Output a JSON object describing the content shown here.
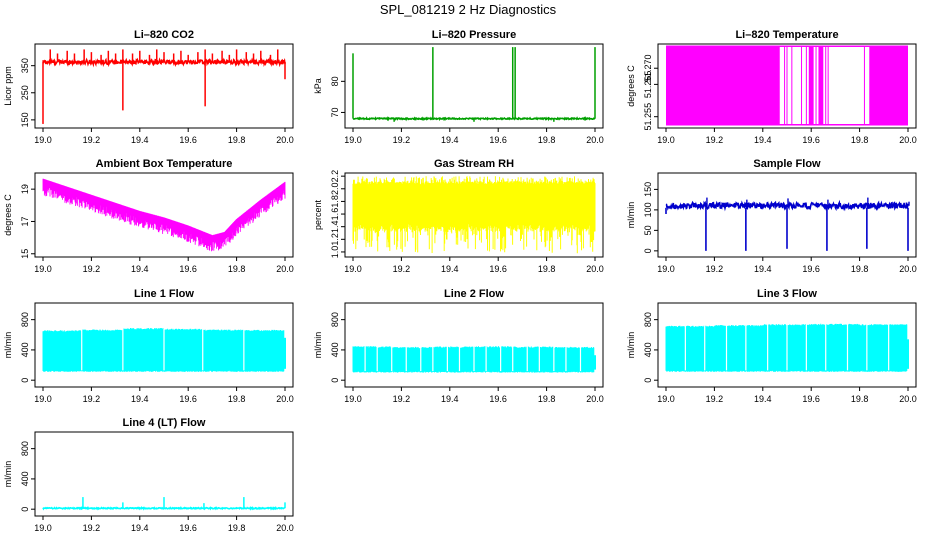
{
  "figure": {
    "title": "SPL_081219  2 Hz Diagnostics"
  },
  "x_ticks": [
    "19.0",
    "19.2",
    "19.4",
    "19.6",
    "19.8",
    "20.0"
  ],
  "chart_data": [
    {
      "type": "line",
      "title": "Li–820 CO2",
      "ylabel": "Licor ppm",
      "x": [
        19.0,
        20.0
      ],
      "ylim": [
        120,
        430
      ],
      "yticks": [
        150,
        250,
        350
      ],
      "ytick_labels": [
        "150",
        "250",
        "350"
      ],
      "color": "#ff0000",
      "pattern": "base_spikes",
      "series": [
        {
          "name": "CO2",
          "base": [
            355,
            372
          ],
          "spikes": [
            [
              19.0,
              135
            ],
            [
              19.03,
              410
            ],
            [
              19.06,
              395
            ],
            [
              19.1,
              405
            ],
            [
              19.13,
              395
            ],
            [
              19.17,
              410
            ],
            [
              19.2,
              400
            ],
            [
              19.24,
              390
            ],
            [
              19.27,
              405
            ],
            [
              19.3,
              395
            ],
            [
              19.33,
              410
            ],
            [
              19.33,
              185
            ],
            [
              19.37,
              395
            ],
            [
              19.4,
              405
            ],
            [
              19.44,
              390
            ],
            [
              19.47,
              410
            ],
            [
              19.5,
              400
            ],
            [
              19.54,
              395
            ],
            [
              19.57,
              405
            ],
            [
              19.6,
              390
            ],
            [
              19.64,
              400
            ],
            [
              19.67,
              410
            ],
            [
              19.67,
              200
            ],
            [
              19.7,
              395
            ],
            [
              19.74,
              405
            ],
            [
              19.77,
              390
            ],
            [
              19.8,
              410
            ],
            [
              19.84,
              400
            ],
            [
              19.87,
              395
            ],
            [
              19.9,
              405
            ],
            [
              19.94,
              390
            ],
            [
              19.97,
              410
            ],
            [
              20.0,
              300
            ]
          ]
        }
      ]
    },
    {
      "type": "line",
      "title": "Li–820 Pressure",
      "ylabel": "kPa",
      "x": [
        19.0,
        20.0
      ],
      "ylim": [
        65,
        92
      ],
      "yticks": [
        70,
        80
      ],
      "ytick_labels": [
        "70",
        "80"
      ],
      "color": "#00a000",
      "pattern": "base_spikes",
      "series": [
        {
          "name": "Pressure",
          "base": [
            67.8,
            68.2
          ],
          "spikes": [
            [
              19.0,
              89
            ],
            [
              19.17,
              67
            ],
            [
              19.33,
              91
            ],
            [
              19.5,
              67
            ],
            [
              19.66,
              91
            ],
            [
              19.67,
              91
            ],
            [
              19.83,
              67
            ],
            [
              20.0,
              91
            ]
          ]
        }
      ]
    },
    {
      "type": "line",
      "title": "Li–820 Temperature",
      "ylabel": "degrees C",
      "x": [
        19.0,
        20.0
      ],
      "ylim": [
        51.2515,
        51.2775
      ],
      "yticks": [
        51.255,
        51.265,
        51.27
      ],
      "ytick_labels": [
        "51.255",
        "51.265",
        "51.270"
      ],
      "color": "#ff00ff",
      "pattern": "blocks",
      "series": [
        {
          "name": "Temperature",
          "low": 51.2525,
          "high": 51.2768,
          "filled": [
            [
              19.0,
              19.47
            ],
            [
              19.59,
              19.61
            ],
            [
              19.63,
              19.65
            ],
            [
              19.84,
              20.0
            ]
          ],
          "lines": [
            19.49,
            19.5,
            19.52,
            19.56,
            19.58,
            19.62,
            19.64,
            19.66,
            19.67,
            19.82,
            19.86,
            19.88
          ]
        }
      ]
    },
    {
      "type": "line",
      "title": "Ambient Box Temperature",
      "ylabel": "degrees C",
      "x": [
        19.0,
        20.0
      ],
      "ylim": [
        14.8,
        20.0
      ],
      "yticks": [
        15,
        17,
        19
      ],
      "ytick_labels": [
        "15",
        "17",
        "19"
      ],
      "color": "#ff00ff",
      "pattern": "trend_band",
      "series": [
        {
          "name": "Box Temperature",
          "trend": [
            [
              19.0,
              19.5
            ],
            [
              19.1,
              19.0
            ],
            [
              19.2,
              18.5
            ],
            [
              19.3,
              18.0
            ],
            [
              19.4,
              17.5
            ],
            [
              19.5,
              17.1
            ],
            [
              19.6,
              16.6
            ],
            [
              19.7,
              16.0
            ],
            [
              19.75,
              16.2
            ],
            [
              19.8,
              17.0
            ],
            [
              19.9,
              18.2
            ],
            [
              20.0,
              19.3
            ]
          ],
          "spread": 0.9
        }
      ]
    },
    {
      "type": "line",
      "title": "Gas Stream RH",
      "ylabel": "percent",
      "x": [
        19.0,
        20.0
      ],
      "ylim": [
        0.92,
        2.25
      ],
      "yticks": [
        1.0,
        1.2,
        1.4,
        1.6,
        1.8,
        2.0,
        2.2
      ],
      "ytick_labels": [
        "1.0",
        "1.2",
        "1.4",
        "1.6",
        "1.8",
        "2.0",
        "2.2"
      ],
      "color": "#ffff00",
      "pattern": "band",
      "series": [
        {
          "name": "RH",
          "band": [
            1.32,
            2.12
          ],
          "outer": [
            0.98,
            2.2
          ]
        }
      ]
    },
    {
      "type": "line",
      "title": "Sample Flow",
      "ylabel": "ml/min",
      "x": [
        19.0,
        20.0
      ],
      "ylim": [
        -15,
        190
      ],
      "yticks": [
        0,
        50,
        100,
        150
      ],
      "ytick_labels": [
        "0",
        "50",
        "100",
        "150"
      ],
      "color": "#0000cc",
      "pattern": "base_dips",
      "series": [
        {
          "name": "Sample Flow",
          "base": [
            103,
            118
          ],
          "dips": [
            [
              19.0,
              90
            ],
            [
              19.165,
              0
            ],
            [
              19.33,
              0
            ],
            [
              19.5,
              5
            ],
            [
              19.665,
              0
            ],
            [
              19.83,
              5
            ],
            [
              20.0,
              0
            ]
          ],
          "spikes": [
            [
              19.165,
              130
            ],
            [
              19.33,
              125
            ],
            [
              19.5,
              128
            ],
            [
              19.665,
              125
            ],
            [
              19.83,
              130
            ],
            [
              20.0,
              120
            ]
          ]
        }
      ]
    },
    {
      "type": "line",
      "title": "Line 1 Flow",
      "ylabel": "ml/min",
      "x": [
        19.0,
        20.0
      ],
      "ylim": [
        -90,
        1020
      ],
      "yticks": [
        0,
        400,
        800
      ],
      "ytick_labels": [
        "0",
        "400",
        "800"
      ],
      "color": "#00ffff",
      "pattern": "band_gaps",
      "series": [
        {
          "name": "Line 1 Flow",
          "band": [
            110,
            680
          ],
          "top_steps": [
            [
              19.0,
              640
            ],
            [
              19.16,
              650
            ],
            [
              19.33,
              670
            ],
            [
              19.5,
              660
            ],
            [
              19.66,
              650
            ],
            [
              19.83,
              645
            ]
          ],
          "gaps": [
            19.16,
            19.33,
            19.5,
            19.66,
            19.83
          ],
          "end": [
            20.0,
            560
          ]
        }
      ]
    },
    {
      "type": "line",
      "title": "Line 2 Flow",
      "ylabel": "ml/min",
      "x": [
        19.0,
        20.0
      ],
      "ylim": [
        -90,
        1020
      ],
      "yticks": [
        0,
        400,
        800
      ],
      "ytick_labels": [
        "0",
        "400",
        "800"
      ],
      "color": "#00ffff",
      "pattern": "band_gaps",
      "series": [
        {
          "name": "Line 2 Flow",
          "band": [
            100,
            440
          ],
          "top_steps": [
            [
              19.0,
              430
            ],
            [
              19.16,
              420
            ],
            [
              19.33,
              425
            ],
            [
              19.5,
              430
            ],
            [
              19.66,
              425
            ],
            [
              19.83,
              420
            ]
          ],
          "gaps": [
            19.05,
            19.1,
            19.16,
            19.22,
            19.28,
            19.33,
            19.39,
            19.44,
            19.5,
            19.55,
            19.61,
            19.66,
            19.72,
            19.77,
            19.83,
            19.88,
            19.94
          ],
          "end": [
            20.0,
            330
          ]
        }
      ]
    },
    {
      "type": "line",
      "title": "Line 3 Flow",
      "ylabel": "ml/min",
      "x": [
        19.0,
        20.0
      ],
      "ylim": [
        -90,
        1020
      ],
      "yticks": [
        0,
        400,
        800
      ],
      "ytick_labels": [
        "0",
        "400",
        "800"
      ],
      "color": "#00ffff",
      "pattern": "band_gaps",
      "series": [
        {
          "name": "Line 3 Flow",
          "band": [
            110,
            730
          ],
          "top_steps": [
            [
              19.0,
              700
            ],
            [
              19.2,
              710
            ],
            [
              19.4,
              720
            ],
            [
              19.6,
              725
            ],
            [
              19.8,
              720
            ]
          ],
          "gaps": [
            19.08,
            19.16,
            19.25,
            19.33,
            19.42,
            19.5,
            19.58,
            19.66,
            19.75,
            19.83,
            19.92
          ],
          "end": [
            20.0,
            540
          ]
        }
      ]
    },
    {
      "type": "line",
      "title": "Line 4 (LT) Flow",
      "ylabel": "ml/min",
      "x": [
        19.0,
        20.0
      ],
      "ylim": [
        -90,
        1020
      ],
      "yticks": [
        0,
        400,
        800
      ],
      "ytick_labels": [
        "0",
        "400",
        "800"
      ],
      "color": "#00ffff",
      "pattern": "base_spikes",
      "series": [
        {
          "name": "Line 4 Flow",
          "base": [
            5,
            20
          ],
          "spikes": [
            [
              19.165,
              160
            ],
            [
              19.33,
              90
            ],
            [
              19.5,
              160
            ],
            [
              19.665,
              80
            ],
            [
              19.83,
              160
            ],
            [
              20.0,
              90
            ]
          ]
        }
      ]
    }
  ]
}
